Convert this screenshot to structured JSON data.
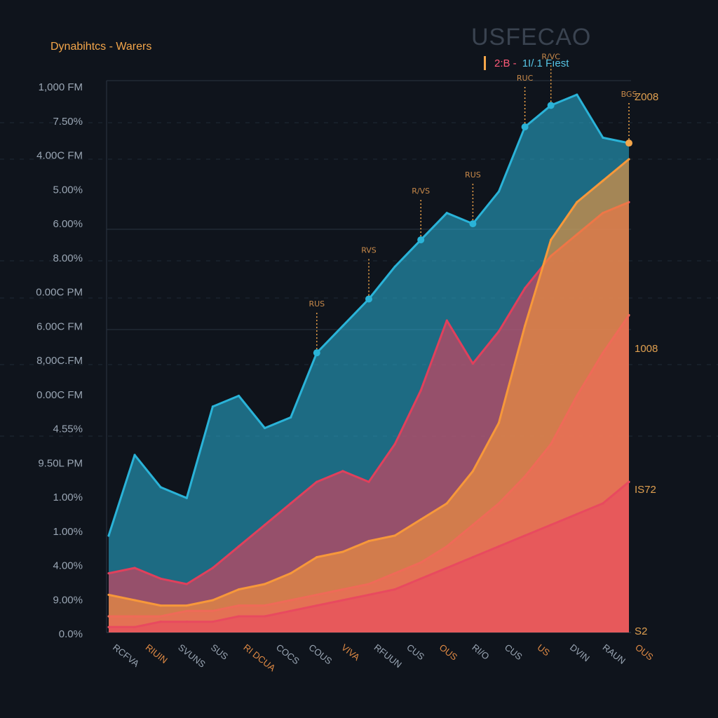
{
  "header": {
    "title": "Dynabihtcs - Warers",
    "wordmark": "USFECAO"
  },
  "legend": {
    "entry_a": "2:B  -",
    "entry_b": "1I/.1 Fıest"
  },
  "colors": {
    "background": "#0f141c",
    "teal": "#2ab3d8",
    "crimson": "#e0405c",
    "orange": "#f7983a",
    "salmon": "#ef6a58",
    "pink": "#e84a5f",
    "accent": "#f4a64a"
  },
  "chart_data": {
    "type": "area",
    "y_tick_labels": [
      "1,000 FM",
      "7.50%",
      "4.00C FM",
      "5.00%",
      "6.00%",
      "8.00%",
      "0.00C PM",
      "6.00C FM",
      "8,00C.FM",
      "0.00C FM",
      "4.55%",
      "9.50L PM",
      "1.00%",
      "1.00%",
      "4.00%",
      "9.00%",
      "0.0%"
    ],
    "x_tick_labels": [
      "RCFVA",
      "RIUIN",
      "SVUNS",
      "SUS",
      "RI DCUA",
      "COCS",
      "COUS",
      "VIVA",
      "RFUUN",
      "CUS",
      "OUS",
      "RI/O",
      "CUS",
      "US",
      "DVIN",
      "RAUN",
      "OUS"
    ],
    "right_labels": [
      "Z008",
      "1008",
      "IS72",
      "S2"
    ],
    "annotations": [
      "RUS",
      "RVS",
      "R/VS",
      "RUS",
      "RUC",
      "R/VC",
      "BGS"
    ],
    "x": [
      0,
      5,
      10,
      15,
      20,
      25,
      30,
      35,
      40,
      45,
      50,
      55,
      60,
      65,
      70,
      75,
      80,
      85,
      90,
      95,
      100
    ],
    "ylim": [
      0,
      100
    ],
    "series": [
      {
        "color": "#2ab3d8",
        "values": [
          18,
          33,
          27,
          25,
          42,
          44,
          38,
          40,
          52,
          57,
          62,
          68,
          73,
          78,
          76,
          82,
          94,
          98,
          100,
          92,
          91
        ]
      },
      {
        "color": "#e0405c",
        "values": [
          11,
          12,
          10,
          9,
          12,
          16,
          20,
          24,
          28,
          30,
          28,
          35,
          45,
          58,
          50,
          56,
          64,
          70,
          74,
          78,
          80
        ]
      },
      {
        "color": "#f7983a",
        "values": [
          7,
          6,
          5,
          5,
          6,
          8,
          9,
          11,
          14,
          15,
          17,
          18,
          21,
          24,
          30,
          39,
          57,
          73,
          80,
          84,
          88
        ]
      },
      {
        "color": "#ef6a58",
        "values": [
          3,
          3,
          3,
          4,
          4,
          5,
          5,
          6,
          7,
          8,
          9,
          11,
          13,
          16,
          20,
          24,
          29,
          35,
          44,
          52,
          59
        ]
      },
      {
        "color": "#e84a5f",
        "values": [
          1,
          1,
          2,
          2,
          2,
          3,
          3,
          4,
          5,
          6,
          7,
          8,
          10,
          12,
          14,
          16,
          18,
          20,
          22,
          24,
          28
        ]
      }
    ],
    "grid": true,
    "legend_position": "top-right"
  }
}
